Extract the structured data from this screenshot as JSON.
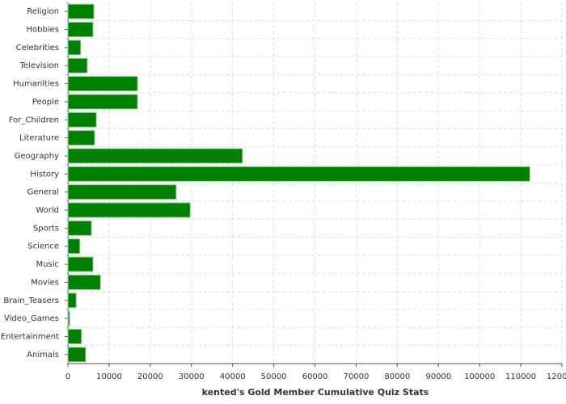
{
  "chart_data": {
    "type": "bar",
    "orientation": "horizontal",
    "title": "kented's Gold Member Cumulative Quiz Stats",
    "categories": [
      "Religion",
      "Hobbies",
      "Celebrities",
      "Television",
      "Humanities",
      "People",
      "For_Children",
      "Literature",
      "Geography",
      "History",
      "General",
      "World",
      "Sports",
      "Science",
      "Music",
      "Movies",
      "Brain_Teasers",
      "Video_Games",
      "Entertainment",
      "Animals"
    ],
    "values": [
      6300,
      6100,
      3100,
      4700,
      16900,
      16900,
      6900,
      6500,
      42400,
      112200,
      26300,
      29700,
      5700,
      2900,
      6100,
      7900,
      2000,
      400,
      3300,
      4300
    ],
    "color": "#008000",
    "xlim": [
      0,
      120000
    ],
    "xticks": [
      0,
      10000,
      20000,
      30000,
      40000,
      50000,
      60000,
      70000,
      80000,
      90000,
      100000,
      110000,
      120000
    ],
    "grid": true
  }
}
